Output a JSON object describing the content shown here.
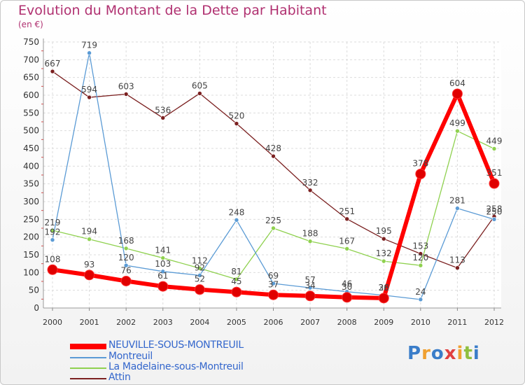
{
  "title": "Evolution du Montant de la Dette par Habitant",
  "unit": "(en €)",
  "logo": {
    "text": "Proxiti"
  },
  "chart_data": {
    "type": "line",
    "title": "Evolution du Montant de la Dette par Habitant",
    "ylabel": "(en €)",
    "x": [
      "2000",
      "2001",
      "2002",
      "2003",
      "2004",
      "2005",
      "2006",
      "2007",
      "2008",
      "2009",
      "2010",
      "2011",
      "2012"
    ],
    "ylim": [
      0,
      750
    ],
    "yticks": [
      0,
      50,
      100,
      150,
      200,
      250,
      300,
      350,
      400,
      450,
      500,
      550,
      600,
      650,
      700,
      750
    ],
    "grid": true,
    "legend_position": "bottom-left",
    "series": [
      {
        "name": "NEUVILLE-SOUS-MONTREUIL",
        "color": "#ff0000",
        "width": 6,
        "marker": 7,
        "values": [
          108,
          93,
          76,
          61,
          52,
          45,
          37,
          34,
          30,
          28,
          378,
          604,
          351
        ],
        "labels": [
          "108",
          "93",
          "76",
          "61",
          "52",
          "45",
          "37",
          "34",
          "30",
          "28",
          "378",
          "604",
          "351"
        ]
      },
      {
        "name": "Montreuil",
        "color": "#5b9bd5",
        "width": 1.3,
        "marker": 3,
        "values": [
          192,
          719,
          120,
          103,
          92,
          248,
          69,
          57,
          46,
          36,
          24,
          281,
          250
        ],
        "labels": [
          "192",
          "719",
          "120",
          "103",
          "92",
          "248",
          "69",
          "57",
          "46",
          "36",
          "24",
          "281",
          "250"
        ]
      },
      {
        "name": "La Madelaine-sous-Montreuil",
        "color": "#8fd14f",
        "width": 1.3,
        "marker": 3,
        "values": [
          219,
          194,
          168,
          141,
          112,
          81,
          225,
          188,
          167,
          132,
          120,
          499,
          449
        ],
        "labels": [
          "219",
          "194",
          "168",
          "141",
          "112",
          "81",
          "225",
          "188",
          "167",
          "132",
          "120",
          "499",
          "449"
        ]
      },
      {
        "name": "Attin",
        "color": "#7b2020",
        "width": 1.3,
        "marker": 3,
        "values": [
          667,
          594,
          603,
          536,
          605,
          520,
          428,
          332,
          251,
          195,
          153,
          113,
          258
        ],
        "labels": [
          "667",
          "594",
          "603",
          "536",
          "605",
          "520",
          "428",
          "332",
          "251",
          "195",
          "153",
          "113",
          "258"
        ]
      }
    ]
  },
  "legend": [
    {
      "label": "NEUVILLE-SOUS-MONTREUIL",
      "color": "#ff0000",
      "thickness": 6
    },
    {
      "label": "Montreuil",
      "color": "#5b9bd5",
      "thickness": 2
    },
    {
      "label": "La Madelaine-sous-Montreuil",
      "color": "#8fd14f",
      "thickness": 2
    },
    {
      "label": "Attin",
      "color": "#7b2020",
      "thickness": 2
    }
  ]
}
